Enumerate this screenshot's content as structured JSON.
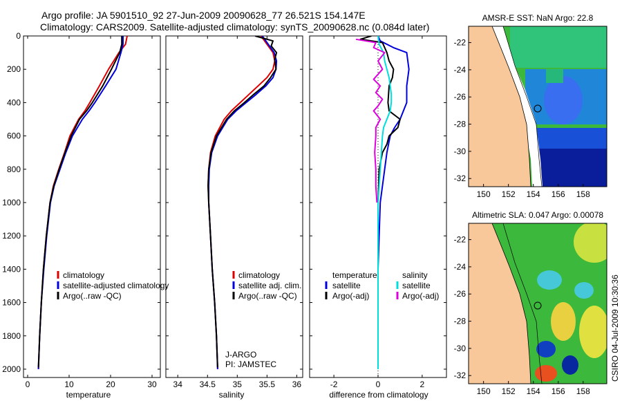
{
  "header": {
    "line1": "Argo profile: JA 5901510_92 27-Jun-2009 20090628_77 26.521S 154.147E",
    "line2": "Climatology: CARS2009. Satellite-adjusted climatology: synTS_20090628.nc (0.084d later)"
  },
  "footer": {
    "credit": "CSIRO 04-Jul-2009 10:30:36"
  },
  "colors": {
    "red": "#dd0000",
    "blue": "#0000dd",
    "black": "#000000",
    "cyan": "#00dddd",
    "magenta": "#dd00dd",
    "land": "#f8c89a"
  },
  "chart_data": [
    {
      "type": "line",
      "panel": "temperature",
      "xlabel": "temperature",
      "ylabel": "",
      "xlim": [
        -1,
        32
      ],
      "ylim": [
        2050,
        0
      ],
      "xticks": [
        "0",
        "10",
        "20",
        "30"
      ],
      "yticks": [
        "0",
        "200",
        "400",
        "600",
        "800",
        "1000",
        "1200",
        "1400",
        "1600",
        "1800",
        "2000"
      ],
      "legend": [
        "climatology",
        "satellite-adjusted climatology",
        "Argo(..raw -QC)"
      ],
      "series": [
        {
          "name": "climatology",
          "color": "red",
          "points": [
            [
              24,
              0
            ],
            [
              23.6,
              50
            ],
            [
              22,
              100
            ],
            [
              19.5,
              200
            ],
            [
              17.3,
              300
            ],
            [
              15,
              400
            ],
            [
              13.8,
              450
            ],
            [
              12.3,
              500
            ],
            [
              10.2,
              600
            ],
            [
              8.9,
              700
            ],
            [
              7.5,
              800
            ],
            [
              6.2,
              900
            ],
            [
              5.4,
              1000
            ],
            [
              4.5,
              1200
            ],
            [
              3.8,
              1400
            ],
            [
              3.3,
              1600
            ],
            [
              2.9,
              1800
            ],
            [
              2.6,
              2000
            ]
          ]
        },
        {
          "name": "satellite-adjusted climatology",
          "color": "blue",
          "points": [
            [
              23,
              0
            ],
            [
              23,
              50
            ],
            [
              22.5,
              100
            ],
            [
              21.3,
              200
            ],
            [
              18.8,
              300
            ],
            [
              16.2,
              400
            ],
            [
              14.8,
              450
            ],
            [
              13.2,
              500
            ],
            [
              10.8,
              600
            ],
            [
              9.2,
              700
            ],
            [
              7.8,
              800
            ],
            [
              6.4,
              900
            ],
            [
              5.5,
              1000
            ],
            [
              4.6,
              1200
            ],
            [
              3.9,
              1400
            ],
            [
              3.3,
              1600
            ],
            [
              2.9,
              1800
            ],
            [
              2.6,
              2000
            ]
          ]
        },
        {
          "name": "Argo(..raw -QC)",
          "color": "black",
          "points": [
            [
              22.7,
              0
            ],
            [
              22.7,
              50
            ],
            [
              22.2,
              100
            ],
            [
              20.2,
              200
            ],
            [
              18.1,
              300
            ],
            [
              15.6,
              400
            ],
            [
              14.2,
              450
            ],
            [
              12.5,
              500
            ],
            [
              10.5,
              600
            ],
            [
              9,
              700
            ],
            [
              7.6,
              800
            ],
            [
              6.3,
              900
            ],
            [
              5.4,
              1000
            ],
            [
              4.5,
              1200
            ],
            [
              3.8,
              1400
            ],
            [
              3.3,
              1600
            ],
            [
              2.9,
              1800
            ],
            [
              2.6,
              1990
            ]
          ]
        }
      ]
    },
    {
      "type": "line",
      "panel": "salinity",
      "xlabel": "salinity",
      "ylabel": "",
      "xlim": [
        33.8,
        36.1
      ],
      "ylim": [
        2050,
        0
      ],
      "xticks": [
        "34",
        "34.5",
        "35",
        "35.5",
        "36"
      ],
      "legend": [
        "climatology",
        "satellite adj. clim.",
        "Argo(..raw -QC)"
      ],
      "annotations": [
        "J-ARGO",
        "PI: JAMSTEC"
      ],
      "series": [
        {
          "name": "climatology",
          "color": "red",
          "points": [
            [
              35.4,
              0
            ],
            [
              35.5,
              50
            ],
            [
              35.6,
              100
            ],
            [
              35.63,
              150
            ],
            [
              35.6,
              200
            ],
            [
              35.5,
              250
            ],
            [
              35.35,
              300
            ],
            [
              35.2,
              350
            ],
            [
              35.05,
              400
            ],
            [
              34.9,
              450
            ],
            [
              34.78,
              500
            ],
            [
              34.63,
              600
            ],
            [
              34.55,
              700
            ],
            [
              34.52,
              800
            ],
            [
              34.51,
              900
            ],
            [
              34.52,
              1000
            ],
            [
              34.55,
              1200
            ],
            [
              34.58,
              1400
            ],
            [
              34.62,
              1600
            ],
            [
              34.65,
              1800
            ],
            [
              34.67,
              2000
            ]
          ]
        },
        {
          "name": "satellite adj. clim.",
          "color": "blue",
          "points": [
            [
              35.42,
              0
            ],
            [
              35.52,
              50
            ],
            [
              35.62,
              100
            ],
            [
              35.66,
              150
            ],
            [
              35.65,
              200
            ],
            [
              35.6,
              250
            ],
            [
              35.48,
              300
            ],
            [
              35.32,
              350
            ],
            [
              35.15,
              400
            ],
            [
              34.98,
              450
            ],
            [
              34.84,
              500
            ],
            [
              34.67,
              600
            ],
            [
              34.57,
              700
            ],
            [
              34.53,
              800
            ],
            [
              34.52,
              900
            ],
            [
              34.52,
              1000
            ],
            [
              34.55,
              1200
            ],
            [
              34.58,
              1400
            ],
            [
              34.62,
              1600
            ],
            [
              34.65,
              1800
            ],
            [
              34.67,
              2000
            ]
          ]
        },
        {
          "name": "Argo(..raw -QC)",
          "color": "black",
          "points": [
            [
              35.3,
              0
            ],
            [
              35.6,
              30
            ],
            [
              35.57,
              60
            ],
            [
              35.66,
              100
            ],
            [
              35.63,
              140
            ],
            [
              35.65,
              200
            ],
            [
              35.56,
              250
            ],
            [
              35.45,
              300
            ],
            [
              35.28,
              350
            ],
            [
              35.12,
              400
            ],
            [
              34.95,
              450
            ],
            [
              34.82,
              500
            ],
            [
              34.65,
              600
            ],
            [
              34.56,
              700
            ],
            [
              34.52,
              800
            ],
            [
              34.51,
              900
            ],
            [
              34.52,
              1000
            ],
            [
              34.55,
              1200
            ],
            [
              34.58,
              1400
            ],
            [
              34.62,
              1600
            ],
            [
              34.65,
              1800
            ],
            [
              34.67,
              1990
            ]
          ]
        }
      ]
    },
    {
      "type": "line",
      "panel": "difference",
      "xlabel": "difference from climatology",
      "ylabel": "",
      "xlim": [
        -3.1,
        3.1
      ],
      "ylim": [
        2050,
        0
      ],
      "xticks": [
        "-2",
        "0",
        "2"
      ],
      "legend_headers": [
        "temperature",
        "salinity"
      ],
      "legend": [
        "satellite",
        "Argo(-adj)",
        "satellite",
        "Argo(-adj)"
      ],
      "series": [
        {
          "name": "satellite",
          "group": "temperature",
          "color": "blue",
          "points": [
            [
              0,
              0
            ],
            [
              0.1,
              30
            ],
            [
              0.7,
              70
            ],
            [
              1.3,
              100
            ],
            [
              1.4,
              200
            ],
            [
              1.3,
              300
            ],
            [
              1.3,
              400
            ],
            [
              1,
              500
            ],
            [
              0.75,
              550
            ],
            [
              0.55,
              600
            ],
            [
              0.4,
              700
            ],
            [
              0.3,
              800
            ],
            [
              0.2,
              900
            ],
            [
              0.1,
              1000
            ],
            [
              0.05,
              1200
            ],
            [
              0,
              1400
            ],
            [
              0,
              2000
            ]
          ]
        },
        {
          "name": "Argo(-adj)",
          "group": "temperature",
          "color": "black",
          "points": [
            [
              -0.3,
              0
            ],
            [
              -0.8,
              20
            ],
            [
              0.2,
              40
            ],
            [
              0.4,
              100
            ],
            [
              0.5,
              150
            ],
            [
              0.7,
              200
            ],
            [
              0.65,
              250
            ],
            [
              0.5,
              300
            ],
            [
              0.45,
              400
            ],
            [
              0.5,
              450
            ],
            [
              1,
              500
            ],
            [
              0.9,
              550
            ],
            [
              0.5,
              600
            ],
            [
              0.4,
              650
            ],
            [
              0.2,
              700
            ],
            [
              0.05,
              800
            ],
            [
              0,
              1000
            ],
            [
              0,
              1990
            ]
          ]
        },
        {
          "name": "satellite",
          "group": "salinity",
          "color": "cyan",
          "points": [
            [
              0,
              0
            ],
            [
              0.05,
              50
            ],
            [
              0.25,
              100
            ],
            [
              0.3,
              150
            ],
            [
              0.4,
              200
            ],
            [
              0.5,
              250
            ],
            [
              0.55,
              300
            ],
            [
              0.6,
              350
            ],
            [
              0.6,
              400
            ],
            [
              0.55,
              450
            ],
            [
              0.4,
              500
            ],
            [
              0.25,
              550
            ],
            [
              0.2,
              600
            ],
            [
              0.15,
              700
            ],
            [
              0.1,
              800
            ],
            [
              0.05,
              900
            ],
            [
              0,
              1000
            ],
            [
              0,
              2000
            ]
          ]
        },
        {
          "name": "Argo(-adj)",
          "group": "salinity",
          "color": "magenta",
          "points": [
            [
              -1,
              20
            ],
            [
              -0.1,
              40
            ],
            [
              -0.2,
              70
            ],
            [
              0.3,
              100
            ],
            [
              0,
              150
            ],
            [
              0.2,
              200
            ],
            [
              -0.2,
              260
            ],
            [
              0.1,
              300
            ],
            [
              -0.1,
              340
            ],
            [
              0.2,
              380
            ],
            [
              0,
              420
            ],
            [
              -0.2,
              450
            ],
            [
              0.1,
              500
            ],
            [
              -0.1,
              550
            ],
            [
              -0.1,
              600
            ],
            [
              -0.15,
              700
            ],
            [
              -0.1,
              800
            ],
            [
              -0.1,
              900
            ],
            [
              -0.05,
              1000
            ]
          ]
        }
      ]
    },
    {
      "type": "heatmap",
      "panel": "sst-map",
      "title": "AMSR-E SST: NaN Argo: 22.8",
      "xticks": [
        "150",
        "152",
        "154",
        "156",
        "158"
      ],
      "yticks": [
        "-22",
        "-24",
        "-26",
        "-28",
        "-30",
        "-32"
      ]
    },
    {
      "type": "heatmap",
      "panel": "sla-map",
      "title": "Altimetric SLA: 0.047 Argo: 0.00078",
      "xticks": [
        "150",
        "152",
        "154",
        "156",
        "158"
      ],
      "yticks": [
        "-22",
        "-24",
        "-26",
        "-28",
        "-30",
        "-32"
      ]
    }
  ]
}
